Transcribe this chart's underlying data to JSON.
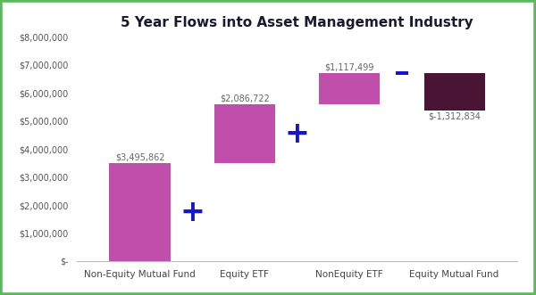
{
  "title": "5 Year Flows into Asset Management Industry",
  "categories": [
    "Non-Equity Mutual Fund",
    "Equity ETF",
    "NonEquity ETF",
    "Equity Mutual Fund"
  ],
  "values": [
    3495862,
    2086722,
    1117499,
    -1312834
  ],
  "labels": [
    "$3,495,862",
    "$2,086,722",
    "$1,117,499",
    "$-1,312,834"
  ],
  "bar_colors": [
    "#bf4faa",
    "#bf4faa",
    "#bf4faa",
    "#4a1535"
  ],
  "connector_symbols": [
    "+",
    "+",
    "-"
  ],
  "connector_color": "#1515cc",
  "ylim": [
    0,
    8000000
  ],
  "yticks": [
    0,
    1000000,
    2000000,
    3000000,
    4000000,
    5000000,
    6000000,
    7000000,
    8000000
  ],
  "ytick_labels": [
    "$-",
    "$1,000,000",
    "$2,000,000",
    "$3,000,000",
    "$4,000,000",
    "$5,000,000",
    "$6,000,000",
    "$7,000,000",
    "$8,000,000"
  ],
  "background_color": "#ffffff",
  "border_color": "#5cb85c",
  "title_fontsize": 11,
  "label_fontsize": 7
}
